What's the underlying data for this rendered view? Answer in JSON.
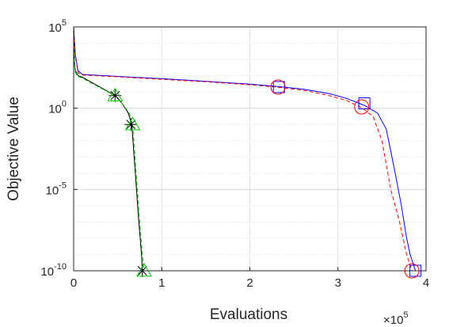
{
  "chart_data": {
    "type": "line",
    "title": "",
    "xlabel": "Evaluations",
    "ylabel": "Objective Value",
    "x_multiplier_label": "×10",
    "x_multiplier_exp": "5",
    "x_scale": "linear",
    "y_scale": "log",
    "xlim": [
      0,
      400000
    ],
    "ylim": [
      1e-10,
      100000
    ],
    "x_ticks": [
      {
        "value": 0,
        "label": "0"
      },
      {
        "value": 100000,
        "label": "1"
      },
      {
        "value": 200000,
        "label": "2"
      },
      {
        "value": 300000,
        "label": "3"
      },
      {
        "value": 400000,
        "label": "4"
      }
    ],
    "y_ticks": [
      {
        "value": 1e-10,
        "base": "10",
        "exp": "-10"
      },
      {
        "value": 1e-05,
        "base": "10",
        "exp": "-5"
      },
      {
        "value": 1,
        "base": "10",
        "exp": "0"
      },
      {
        "value": 100000,
        "base": "10",
        "exp": "5"
      }
    ],
    "grid": true,
    "minor_grid": true,
    "series": [
      {
        "color": "#0000ff",
        "dash": "solid",
        "marker": "square",
        "x": [
          0,
          2000,
          5000,
          10000,
          50000,
          100000,
          150000,
          200000,
          230000,
          260000,
          290000,
          310000,
          330000,
          345000,
          355000,
          365000,
          372000,
          378000,
          382000,
          388000
        ],
        "y": [
          100000,
          2000,
          200,
          120,
          90,
          65,
          45,
          30,
          22,
          15,
          8,
          4,
          1.5,
          0.5,
          0.05,
          0.0001,
          1e-06,
          1e-08,
          1e-09,
          1e-10
        ],
        "markers_x": [
          233000,
          330000,
          388000
        ],
        "markers_y": [
          20,
          2,
          1e-10
        ]
      },
      {
        "color": "#ff0000",
        "dash": "dashed",
        "marker": "circle",
        "x": [
          0,
          2000,
          5000,
          10000,
          50000,
          100000,
          150000,
          200000,
          230000,
          260000,
          290000,
          310000,
          328000,
          340000,
          350000,
          360000,
          370000,
          378000,
          384000
        ],
        "y": [
          100000,
          1500,
          150,
          110,
          85,
          60,
          42,
          28,
          20,
          13,
          6,
          3,
          1.0,
          0.3,
          0.01,
          1e-05,
          1e-07,
          1e-09,
          1e-10
        ],
        "markers_x": [
          232000,
          327000,
          384000
        ],
        "markers_y": [
          20,
          1.2,
          1e-10
        ]
      },
      {
        "color": "#000000",
        "dash": "solid",
        "marker": "asterisk",
        "x": [
          0,
          1000,
          2000,
          5000,
          10000,
          20000,
          30000,
          47000,
          55000,
          62000,
          66000,
          70000,
          74000,
          77000,
          78000
        ],
        "y": [
          100000,
          500,
          200,
          100,
          80,
          40,
          20,
          6,
          2,
          0.5,
          0.1,
          0.0001,
          1e-07,
          1e-09,
          1e-10
        ],
        "markers_x": [
          47000,
          65000,
          78000
        ],
        "markers_y": [
          6,
          0.1,
          1e-10
        ]
      },
      {
        "color": "#00cc00",
        "dash": "dashed",
        "marker": "triangle",
        "x": [
          0,
          1000,
          2000,
          5000,
          10000,
          20000,
          30000,
          47000,
          55000,
          63000,
          67000,
          71000,
          75000,
          78000,
          80000
        ],
        "y": [
          100000,
          400,
          150,
          90,
          70,
          35,
          18,
          6,
          2,
          0.5,
          0.1,
          0.0001,
          1e-07,
          1e-09,
          1e-10
        ],
        "markers_x": [
          47000,
          67000,
          80000
        ],
        "markers_y": [
          6,
          0.1,
          1e-10
        ]
      }
    ]
  }
}
